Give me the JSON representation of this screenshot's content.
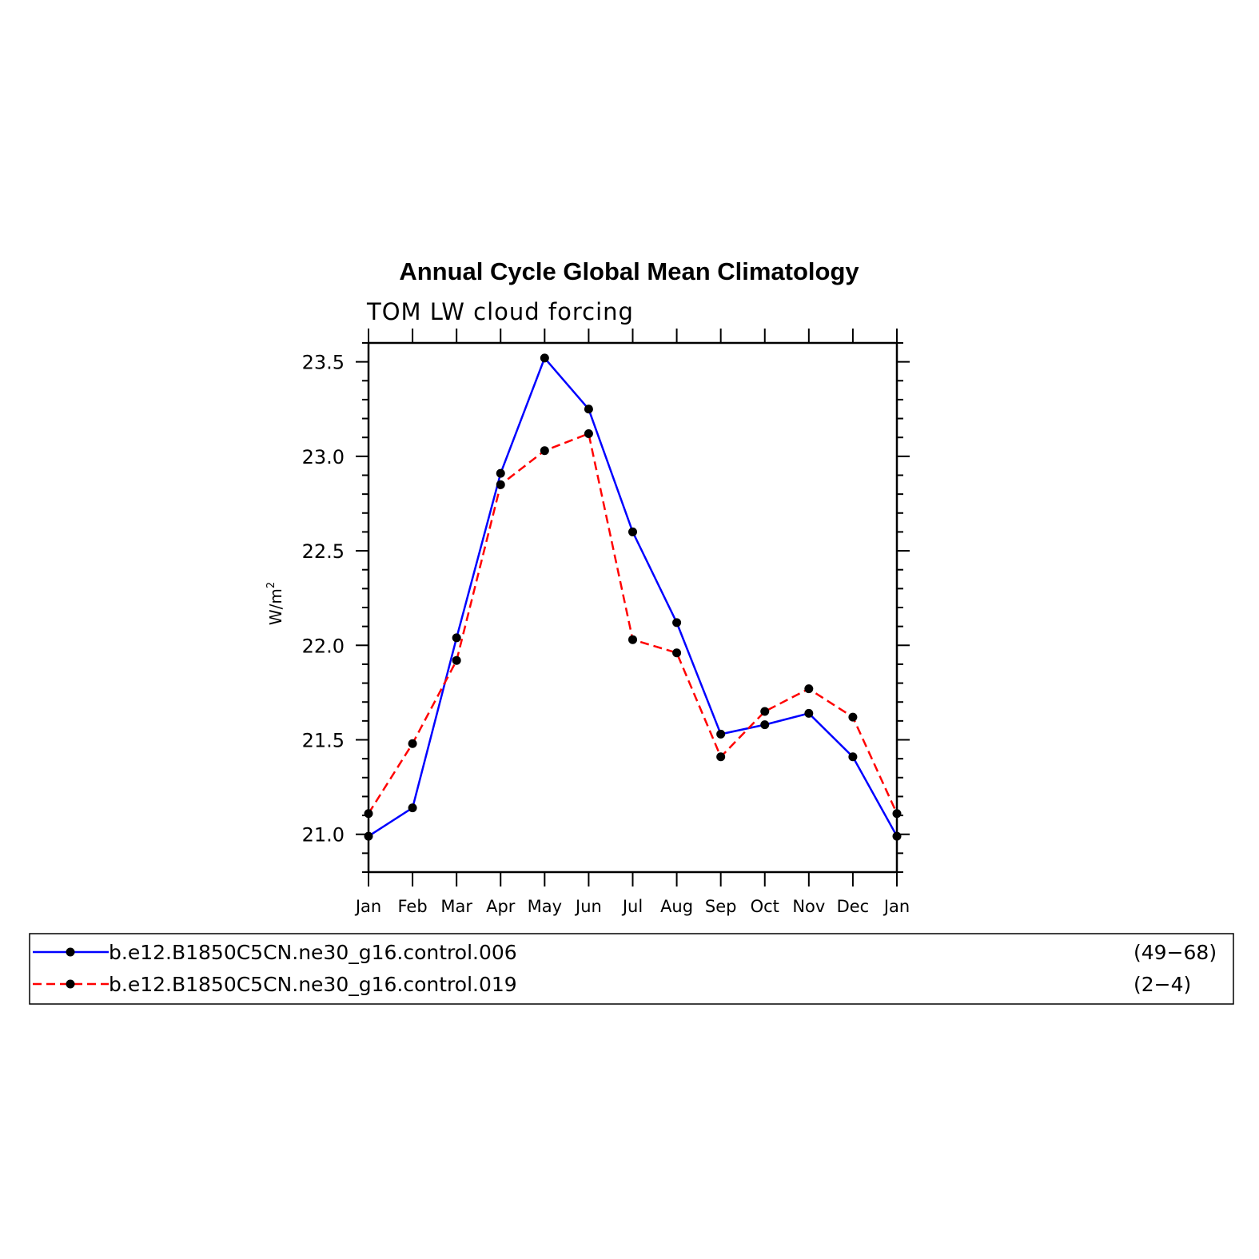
{
  "chart_data": {
    "type": "line",
    "title": "Annual Cycle Global Mean Climatology",
    "subtitle": "TOM LW cloud forcing",
    "ylabel": "W/m",
    "ylabel_superscript": "2",
    "xlabel": "",
    "categories": [
      "Jan",
      "Feb",
      "Mar",
      "Apr",
      "May",
      "Jun",
      "Jul",
      "Aug",
      "Sep",
      "Oct",
      "Nov",
      "Dec",
      "Jan"
    ],
    "ylim": [
      20.8,
      23.6
    ],
    "yticks": [
      "21.0",
      "21.5",
      "22.0",
      "22.5",
      "23.0",
      "23.5"
    ],
    "grid": false,
    "legend_position": "bottom",
    "series": [
      {
        "name": "b.e12.B1850C5CN.ne30_g16.control.006",
        "years": "(49−68)",
        "color": "#0000ff",
        "style": "solid",
        "values": [
          20.99,
          21.14,
          22.04,
          22.91,
          23.52,
          23.25,
          22.6,
          22.12,
          21.53,
          21.58,
          21.64,
          21.41,
          20.99
        ]
      },
      {
        "name": "b.e12.B1850C5CN.ne30_g16.control.019",
        "years": "(2−4)",
        "color": "#ff0000",
        "style": "dashed",
        "values": [
          21.11,
          21.48,
          21.92,
          22.85,
          23.03,
          23.12,
          22.03,
          21.96,
          21.41,
          21.65,
          21.77,
          21.62,
          21.11
        ]
      }
    ]
  }
}
